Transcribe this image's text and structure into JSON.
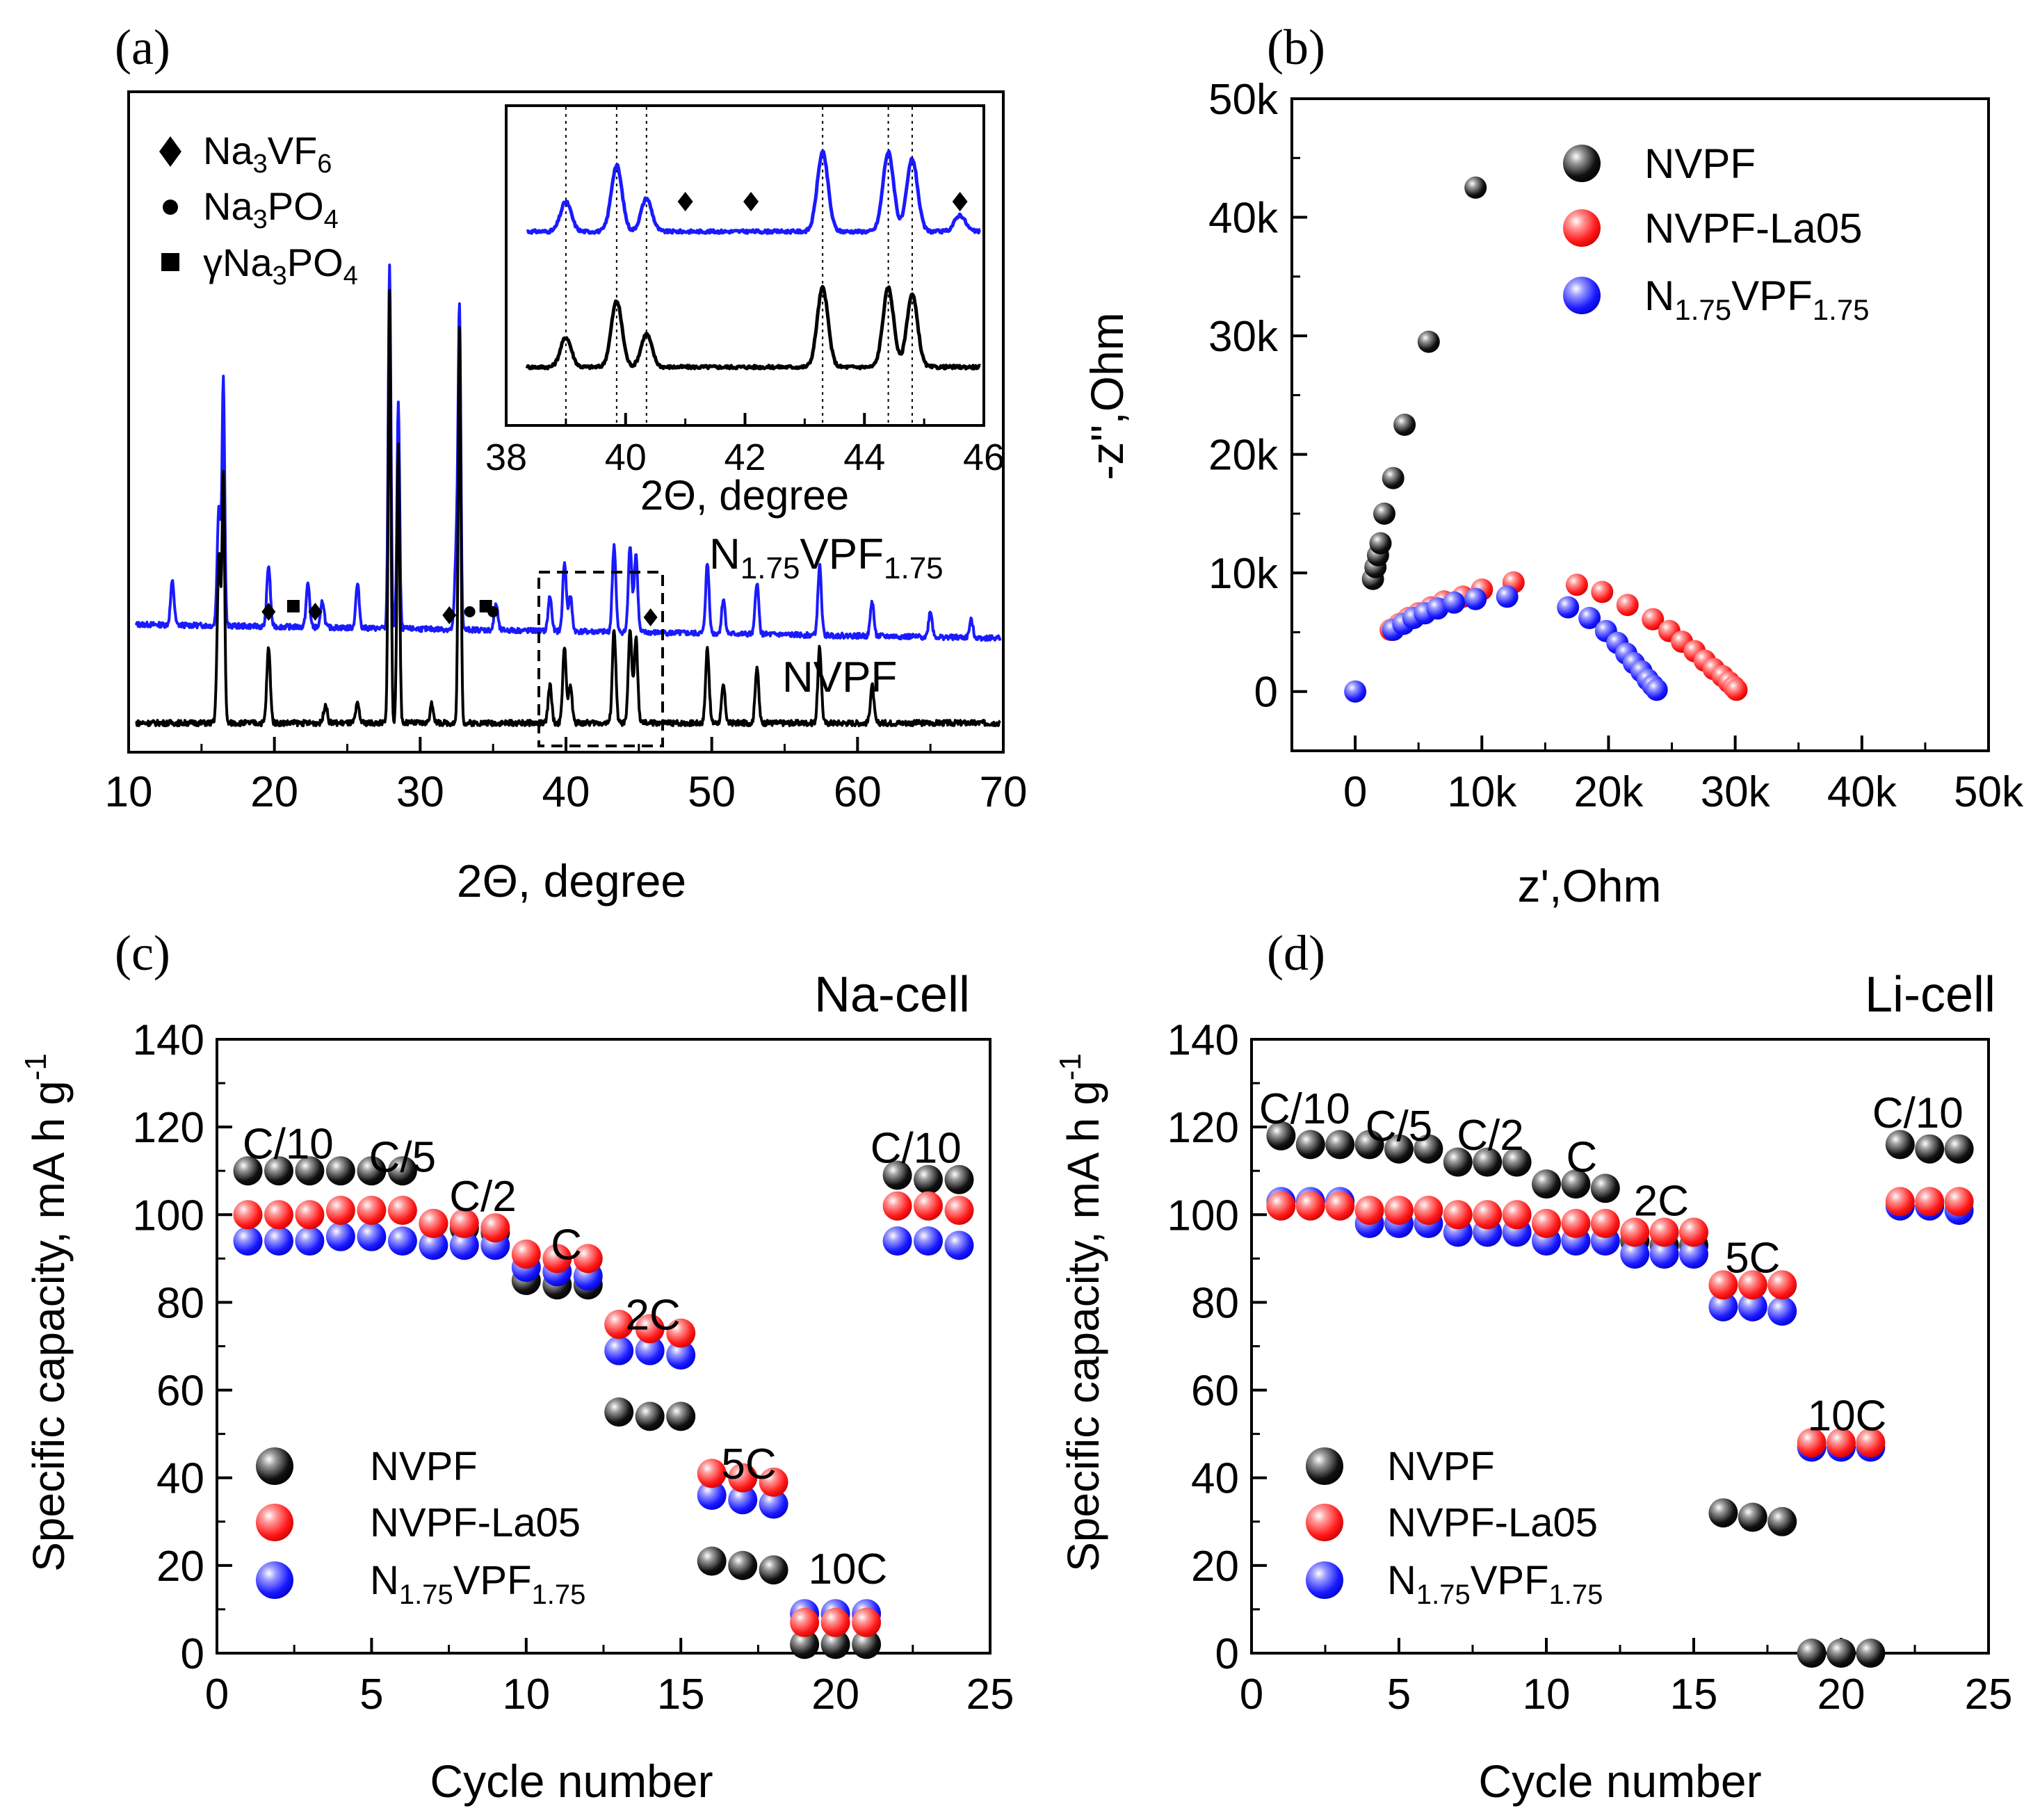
{
  "chart_data": [
    {
      "panel": "(a)",
      "type": "line",
      "xlabel": "2Θ, degree",
      "ylabel": "",
      "xlim": [
        10,
        70
      ],
      "xticks": [
        10,
        20,
        30,
        40,
        50,
        60,
        70
      ],
      "legend": [
        {
          "marker": "diamond",
          "text": "Na3VF6"
        },
        {
          "marker": "circle",
          "text": "Na3PO4"
        },
        {
          "marker": "square",
          "text": "γNa3PO4"
        }
      ],
      "series": [
        {
          "name": "N1.75VPF1.75",
          "color": "#1a1aff",
          "offset": 1,
          "peaks": [
            [
              13.0,
              0.25
            ],
            [
              16.2,
              0.7
            ],
            [
              16.5,
              1.4
            ],
            [
              19.6,
              0.35
            ],
            [
              22.3,
              0.25
            ],
            [
              23.3,
              0.15
            ],
            [
              25.7,
              0.25
            ],
            [
              27.9,
              2.1
            ],
            [
              28.5,
              1.3
            ],
            [
              32.5,
              0.5
            ],
            [
              32.7,
              1.75
            ],
            [
              35.2,
              0.15
            ],
            [
              38.9,
              0.2
            ],
            [
              39.9,
              0.4
            ],
            [
              40.3,
              0.2
            ],
            [
              43.3,
              0.5
            ],
            [
              44.4,
              0.5
            ],
            [
              44.8,
              0.45
            ],
            [
              49.7,
              0.4
            ],
            [
              50.8,
              0.2
            ],
            [
              53.1,
              0.3
            ],
            [
              57.4,
              0.4
            ],
            [
              61.0,
              0.2
            ],
            [
              65.0,
              0.15
            ],
            [
              67.8,
              0.1
            ]
          ]
        },
        {
          "name": "NVPF",
          "color": "#000000",
          "offset": 0,
          "peaks": [
            [
              16.2,
              0.9
            ],
            [
              16.5,
              1.3
            ],
            [
              19.6,
              0.4
            ],
            [
              23.5,
              0.1
            ],
            [
              25.7,
              0.1
            ],
            [
              27.9,
              2.3
            ],
            [
              28.5,
              1.5
            ],
            [
              30.8,
              0.1
            ],
            [
              32.7,
              2.1
            ],
            [
              38.9,
              0.2
            ],
            [
              39.9,
              0.4
            ],
            [
              40.3,
              0.2
            ],
            [
              43.3,
              0.5
            ],
            [
              44.4,
              0.5
            ],
            [
              44.8,
              0.45
            ],
            [
              49.7,
              0.4
            ],
            [
              50.8,
              0.2
            ],
            [
              53.1,
              0.3
            ],
            [
              57.4,
              0.4
            ],
            [
              61.0,
              0.2
            ]
          ]
        }
      ],
      "series_labels": [
        "N1.75VPF1.75",
        "NVPF"
      ],
      "phase_markers": [
        {
          "marker": "diamond",
          "x": 19.6
        },
        {
          "marker": "square",
          "x": 21.3
        },
        {
          "marker": "diamond",
          "x": 22.8
        },
        {
          "marker": "diamond",
          "x": 32.0
        },
        {
          "marker": "circle",
          "x": 33.4
        },
        {
          "marker": "square",
          "x": 34.5
        },
        {
          "marker": "circle",
          "x": 35.0
        },
        {
          "marker": "diamond",
          "x": 45.8
        }
      ],
      "inset": {
        "xlabel": "2Θ, degree",
        "xlim": [
          38,
          46
        ],
        "xticks": [
          38,
          40,
          42,
          44,
          46
        ],
        "dotted_lines": [
          39.0,
          39.85,
          40.35,
          43.3,
          44.4,
          44.8
        ],
        "markers_x": [
          41.0,
          42.1,
          45.6
        ],
        "peaks": [
          [
            39.0,
            0.45
          ],
          [
            39.85,
            1.0
          ],
          [
            40.35,
            0.5
          ],
          [
            43.3,
            1.2
          ],
          [
            44.4,
            1.2
          ],
          [
            44.8,
            1.1
          ],
          [
            45.6,
            0.25
          ]
        ]
      }
    },
    {
      "panel": "(b)",
      "type": "scatter",
      "xlabel": "z',Ohm",
      "ylabel": "-z'',Ohm",
      "xlim": [
        -5000,
        50000
      ],
      "ylim": [
        -5000,
        50000
      ],
      "xticks": [
        0,
        10000,
        20000,
        30000,
        40000,
        50000
      ],
      "yticks": [
        0,
        10000,
        20000,
        30000,
        40000,
        50000
      ],
      "tick_labels": [
        "0",
        "10k",
        "20k",
        "30k",
        "40k",
        "50k"
      ],
      "legend": [
        "NVPF",
        "NVPF-La05",
        "N1.75VPF1.75"
      ],
      "series": [
        {
          "name": "NVPF",
          "color": "#000000",
          "points": [
            [
              1400,
              9500
            ],
            [
              1600,
              10500
            ],
            [
              1800,
              11500
            ],
            [
              2000,
              12500
            ],
            [
              2300,
              15000
            ],
            [
              3000,
              18000
            ],
            [
              3900,
              22500
            ],
            [
              5800,
              29500
            ],
            [
              9500,
              42500
            ]
          ]
        },
        {
          "name": "NVPF-La05",
          "color": "#ff0000",
          "points": [
            [
              2800,
              5200
            ],
            [
              3500,
              5700
            ],
            [
              4200,
              6200
            ],
            [
              5000,
              6600
            ],
            [
              6000,
              7100
            ],
            [
              7000,
              7600
            ],
            [
              8500,
              8000
            ],
            [
              10000,
              8600
            ],
            [
              12500,
              9200
            ],
            [
              17500,
              9000
            ],
            [
              19500,
              8400
            ],
            [
              21500,
              7300
            ],
            [
              23500,
              6100
            ],
            [
              24800,
              5100
            ],
            [
              25800,
              4200
            ],
            [
              26800,
              3400
            ],
            [
              27600,
              2600
            ],
            [
              28300,
              1900
            ],
            [
              29000,
              1300
            ],
            [
              29500,
              800
            ],
            [
              29900,
              400
            ],
            [
              30100,
              150
            ]
          ]
        },
        {
          "name": "N1.75VPF1.75",
          "color": "#1a1aff",
          "points": [
            [
              0,
              0
            ],
            [
              3000,
              5200
            ],
            [
              3800,
              5700
            ],
            [
              4600,
              6200
            ],
            [
              5500,
              6600
            ],
            [
              6500,
              7000
            ],
            [
              7800,
              7500
            ],
            [
              9500,
              7800
            ],
            [
              12000,
              8000
            ],
            [
              16800,
              7100
            ],
            [
              18500,
              6200
            ],
            [
              19800,
              5100
            ],
            [
              20700,
              4100
            ],
            [
              21400,
              3200
            ],
            [
              22000,
              2400
            ],
            [
              22600,
              1700
            ],
            [
              23100,
              1000
            ],
            [
              23500,
              500
            ],
            [
              23800,
              150
            ]
          ]
        }
      ]
    },
    {
      "panel": "(c)",
      "type": "scatter",
      "title": "Na-cell",
      "xlabel": "Cycle number",
      "ylabel": "Specific capacity, mA h g-1",
      "xlim": [
        0,
        25
      ],
      "ylim": [
        0,
        140
      ],
      "xticks": [
        0,
        5,
        10,
        15,
        20,
        25
      ],
      "yticks": [
        0,
        20,
        40,
        60,
        80,
        100,
        120,
        140
      ],
      "legend": [
        "NVPF",
        "NVPF-La05",
        "N1.75VPF1.75"
      ],
      "rate_labels": [
        {
          "text": "C/10",
          "x": 2.3,
          "y": 116
        },
        {
          "text": "C/5",
          "x": 6.0,
          "y": 113
        },
        {
          "text": "C/2",
          "x": 8.6,
          "y": 104
        },
        {
          "text": "C",
          "x": 11.3,
          "y": 93
        },
        {
          "text": "2C",
          "x": 14.1,
          "y": 77
        },
        {
          "text": "5C",
          "x": 17.2,
          "y": 43
        },
        {
          "text": "10C",
          "x": 20.4,
          "y": 19
        },
        {
          "text": "C/10",
          "x": 22.6,
          "y": 115
        }
      ],
      "series": [
        {
          "name": "NVPF",
          "color": "#000000",
          "values": [
            110,
            110,
            110,
            110,
            110,
            110,
            98,
            97,
            96,
            85,
            84,
            84,
            55,
            54,
            54,
            21,
            20,
            19,
            2,
            2,
            2,
            109,
            108,
            108
          ]
        },
        {
          "name": "NVPF-La05",
          "color": "#ff0000",
          "values": [
            100,
            100,
            100,
            101,
            101,
            101,
            98,
            98,
            97,
            91,
            90,
            90,
            75,
            74,
            73,
            41,
            40,
            39,
            7,
            7,
            7,
            102,
            102,
            101
          ]
        },
        {
          "name": "N1.75VPF1.75",
          "color": "#1a1aff",
          "values": [
            94,
            94,
            94,
            95,
            95,
            94,
            93,
            93,
            93,
            88,
            87,
            86,
            69,
            69,
            68,
            36,
            35,
            34,
            9,
            9,
            9,
            94,
            94,
            93
          ]
        }
      ]
    },
    {
      "panel": "(d)",
      "type": "scatter",
      "title": "Li-cell",
      "xlabel": "Cycle number",
      "ylabel": "Specific capacity, mA h g-1",
      "xlim": [
        0,
        25
      ],
      "ylim": [
        0,
        140
      ],
      "xticks": [
        0,
        5,
        10,
        15,
        20,
        25
      ],
      "yticks": [
        0,
        20,
        40,
        60,
        80,
        100,
        120,
        140
      ],
      "legend": [
        "NVPF",
        "NVPF-La05",
        "N1.75VPF1.75"
      ],
      "rate_labels": [
        {
          "text": "C/10",
          "x": 1.8,
          "y": 124
        },
        {
          "text": "C/5",
          "x": 5.0,
          "y": 120
        },
        {
          "text": "C/2",
          "x": 8.1,
          "y": 118
        },
        {
          "text": "C",
          "x": 11.2,
          "y": 113
        },
        {
          "text": "2C",
          "x": 13.9,
          "y": 103
        },
        {
          "text": "5C",
          "x": 17.0,
          "y": 90
        },
        {
          "text": "10C",
          "x": 20.2,
          "y": 54
        },
        {
          "text": "C/10",
          "x": 22.6,
          "y": 123
        }
      ],
      "series": [
        {
          "name": "NVPF",
          "color": "#000000",
          "values": [
            118,
            116,
            116,
            116,
            115,
            115,
            112,
            112,
            112,
            107,
            107,
            106,
            94,
            93,
            93,
            32,
            31,
            30,
            0,
            0,
            0,
            116,
            115,
            115
          ]
        },
        {
          "name": "NVPF-La05",
          "color": "#ff0000",
          "values": [
            102,
            102,
            102,
            101,
            101,
            101,
            100,
            100,
            100,
            98,
            98,
            98,
            96,
            96,
            96,
            84,
            84,
            84,
            48,
            48,
            48,
            103,
            103,
            103
          ]
        },
        {
          "name": "N1.75VPF1.75",
          "color": "#1a1aff",
          "values": [
            103,
            103,
            103,
            98,
            98,
            98,
            96,
            96,
            96,
            94,
            94,
            94,
            91,
            91,
            91,
            79,
            79,
            78,
            47,
            47,
            47,
            102,
            102,
            101
          ]
        }
      ]
    }
  ],
  "panels": {
    "a": {
      "label": "(a)"
    },
    "b": {
      "label": "(b)"
    },
    "c": {
      "label": "(c)"
    },
    "d": {
      "label": "(d)"
    }
  }
}
